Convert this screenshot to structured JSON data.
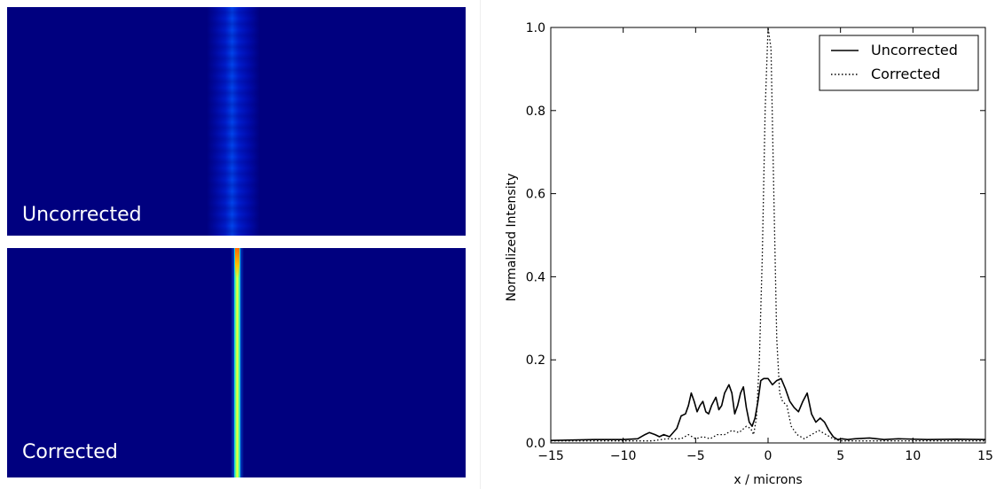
{
  "images": {
    "top_label": "Uncorrected",
    "bottom_label": "Corrected",
    "background_color": "#00007f"
  },
  "chart_data": {
    "type": "line",
    "xlabel": "x / microns",
    "ylabel": "Normalized Intensity",
    "xlim": [
      -15,
      15
    ],
    "ylim": [
      0.0,
      1.0
    ],
    "xticks": [
      -15,
      -10,
      -5,
      0,
      5,
      10,
      15
    ],
    "yticks": [
      0.0,
      0.2,
      0.4,
      0.6,
      0.8,
      1.0
    ],
    "xtick_labels": [
      "−15",
      "−10",
      "−5",
      "0",
      "5",
      "10",
      "15"
    ],
    "ytick_labels": [
      "0.0",
      "0.2",
      "0.4",
      "0.6",
      "0.8",
      "1.0"
    ],
    "legend_position": "top-right",
    "series": [
      {
        "name": "Uncorrected",
        "style": "solid",
        "color": "#000000",
        "x": [
          -15,
          -12,
          -10,
          -9,
          -8.5,
          -8.2,
          -7.8,
          -7.5,
          -7.2,
          -6.8,
          -6.3,
          -6,
          -5.7,
          -5.5,
          -5.3,
          -5.1,
          -4.9,
          -4.7,
          -4.5,
          -4.3,
          -4.1,
          -3.9,
          -3.6,
          -3.4,
          -3.2,
          -3,
          -2.7,
          -2.5,
          -2.3,
          -2.1,
          -1.9,
          -1.7,
          -1.5,
          -1.3,
          -1.1,
          -0.9,
          -0.7,
          -0.5,
          -0.3,
          0,
          0.3,
          0.6,
          0.9,
          1.2,
          1.5,
          1.8,
          2.1,
          2.4,
          2.7,
          3,
          3.3,
          3.6,
          3.9,
          4.2,
          4.5,
          4.8,
          5.1,
          5.5,
          6,
          7,
          7.5,
          8,
          9,
          11,
          13,
          15
        ],
        "y": [
          0.006,
          0.008,
          0.008,
          0.01,
          0.02,
          0.025,
          0.02,
          0.015,
          0.02,
          0.015,
          0.035,
          0.065,
          0.07,
          0.09,
          0.12,
          0.1,
          0.075,
          0.09,
          0.1,
          0.075,
          0.07,
          0.09,
          0.11,
          0.08,
          0.09,
          0.12,
          0.14,
          0.12,
          0.07,
          0.09,
          0.12,
          0.135,
          0.085,
          0.05,
          0.04,
          0.06,
          0.1,
          0.15,
          0.155,
          0.155,
          0.14,
          0.15,
          0.155,
          0.13,
          0.1,
          0.085,
          0.075,
          0.1,
          0.12,
          0.07,
          0.05,
          0.06,
          0.05,
          0.03,
          0.015,
          0.008,
          0.01,
          0.008,
          0.01,
          0.012,
          0.01,
          0.008,
          0.01,
          0.008,
          0.009,
          0.008
        ]
      },
      {
        "name": "Corrected",
        "style": "dotted",
        "color": "#000000",
        "x": [
          -15,
          -10,
          -8,
          -7,
          -6,
          -5.5,
          -5,
          -4.5,
          -4,
          -3.5,
          -3,
          -2.5,
          -2,
          -1.5,
          -1.2,
          -1,
          -0.8,
          -0.6,
          -0.4,
          -0.2,
          0,
          0.2,
          0.4,
          0.6,
          0.8,
          1,
          1.3,
          1.6,
          2,
          2.5,
          3,
          3.5,
          4,
          4.5,
          5,
          6,
          8,
          10,
          15
        ],
        "y": [
          0.005,
          0.005,
          0.005,
          0.01,
          0.01,
          0.02,
          0.01,
          0.015,
          0.01,
          0.02,
          0.02,
          0.03,
          0.025,
          0.04,
          0.035,
          0.02,
          0.06,
          0.2,
          0.45,
          0.8,
          1.0,
          0.95,
          0.6,
          0.25,
          0.12,
          0.1,
          0.09,
          0.04,
          0.02,
          0.01,
          0.02,
          0.03,
          0.02,
          0.01,
          0.005,
          0.005,
          0.005,
          0.005,
          0.005
        ]
      }
    ]
  }
}
